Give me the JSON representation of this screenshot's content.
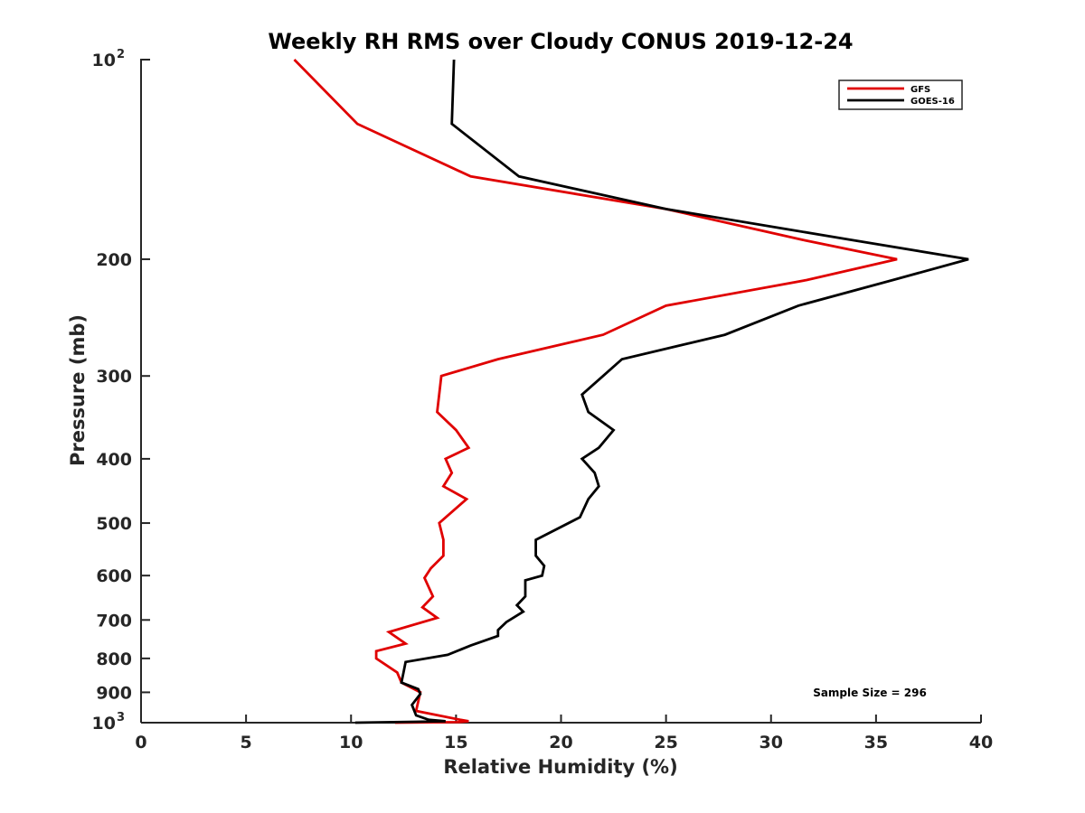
{
  "chart_data": {
    "type": "line",
    "title": "Weekly RH RMS over Cloudy CONUS 2019-12-24",
    "xlabel": "Relative Humidity (%)",
    "ylabel": "Pressure (mb)",
    "xlim": [
      0,
      40
    ],
    "ylim": [
      100,
      1000
    ],
    "y_scale": "log",
    "y_reversed": true,
    "grid": false,
    "legend_position": "top-right",
    "annotation": "Sample Size = 296",
    "x_ticks": [
      {
        "value": 0,
        "label": "0"
      },
      {
        "value": 5,
        "label": "5"
      },
      {
        "value": 10,
        "label": "10"
      },
      {
        "value": 15,
        "label": "15"
      },
      {
        "value": 20,
        "label": "20"
      },
      {
        "value": 25,
        "label": "25"
      },
      {
        "value": 30,
        "label": "30"
      },
      {
        "value": 35,
        "label": "35"
      },
      {
        "value": 40,
        "label": "40"
      }
    ],
    "y_ticks": [
      {
        "value": 100,
        "base": "10",
        "exp": "2"
      },
      {
        "value": 200,
        "label": "200"
      },
      {
        "value": 300,
        "label": "300"
      },
      {
        "value": 400,
        "label": "400"
      },
      {
        "value": 500,
        "label": "500"
      },
      {
        "value": 600,
        "label": "600"
      },
      {
        "value": 700,
        "label": "700"
      },
      {
        "value": 800,
        "label": "800"
      },
      {
        "value": 900,
        "label": "900"
      },
      {
        "value": 1000,
        "base": "10",
        "exp": "3"
      }
    ],
    "series": [
      {
        "name": "GFS",
        "color": "#e00000",
        "points": [
          [
            7.3,
            100
          ],
          [
            10.3,
            125
          ],
          [
            15.7,
            150
          ],
          [
            25,
            168
          ],
          [
            31.5,
            187
          ],
          [
            36,
            200
          ],
          [
            31.7,
            215
          ],
          [
            25,
            235
          ],
          [
            22,
            260
          ],
          [
            17,
            283
          ],
          [
            14.3,
            300
          ],
          [
            14.1,
            340
          ],
          [
            15,
            362
          ],
          [
            15.6,
            385
          ],
          [
            14.5,
            400
          ],
          [
            14.8,
            420
          ],
          [
            14.4,
            440
          ],
          [
            15.5,
            460
          ],
          [
            14.2,
            500
          ],
          [
            14.4,
            530
          ],
          [
            14.4,
            560
          ],
          [
            13.8,
            585
          ],
          [
            13.5,
            605
          ],
          [
            13.9,
            645
          ],
          [
            13.4,
            670
          ],
          [
            14.1,
            695
          ],
          [
            11.8,
            730
          ],
          [
            12.6,
            760
          ],
          [
            11.2,
            780
          ],
          [
            11.2,
            800
          ],
          [
            12.2,
            840
          ],
          [
            12.4,
            870
          ],
          [
            13.3,
            900
          ],
          [
            13.1,
            960
          ],
          [
            15.2,
            990
          ],
          [
            15.6,
            995
          ],
          [
            15.1,
            998
          ],
          [
            12.1,
            1000
          ]
        ]
      },
      {
        "name": "GOES-16",
        "color": "#000000",
        "points": [
          [
            14.9,
            100
          ],
          [
            14.8,
            125
          ],
          [
            18,
            150
          ],
          [
            25,
            168
          ],
          [
            33.8,
            187
          ],
          [
            39.4,
            200
          ],
          [
            35.8,
            215
          ],
          [
            31.3,
            235
          ],
          [
            27.8,
            260
          ],
          [
            22.9,
            283
          ],
          [
            22,
            300
          ],
          [
            21,
            320
          ],
          [
            21.3,
            340
          ],
          [
            22.5,
            362
          ],
          [
            21.8,
            385
          ],
          [
            21,
            400
          ],
          [
            21.6,
            420
          ],
          [
            21.8,
            440
          ],
          [
            21.3,
            460
          ],
          [
            20.9,
            490
          ],
          [
            18.8,
            530
          ],
          [
            18.8,
            560
          ],
          [
            19.2,
            580
          ],
          [
            19.1,
            600
          ],
          [
            18.3,
            610
          ],
          [
            18.3,
            645
          ],
          [
            17.9,
            665
          ],
          [
            18.2,
            680
          ],
          [
            17.4,
            705
          ],
          [
            17,
            725
          ],
          [
            17,
            740
          ],
          [
            15.7,
            765
          ],
          [
            14.6,
            790
          ],
          [
            12.6,
            810
          ],
          [
            12.5,
            840
          ],
          [
            12.4,
            870
          ],
          [
            13.2,
            890
          ],
          [
            13.3,
            905
          ],
          [
            12.9,
            940
          ],
          [
            13.1,
            975
          ],
          [
            13.7,
            990
          ],
          [
            14.5,
            995
          ],
          [
            13.1,
            997
          ],
          [
            10.2,
            1000
          ]
        ]
      }
    ]
  }
}
